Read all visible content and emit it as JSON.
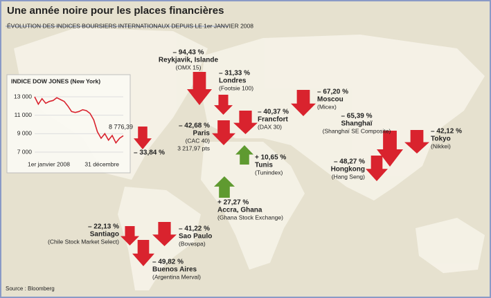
{
  "header": {
    "title": "Une année noire pour les places financières",
    "subtitle": "ÉVOLUTION DES INDICES BOURSIERS INTERNATIONAUX DEPUIS LE 1er JANVIER 2008"
  },
  "source": "Source : Bloomberg",
  "markets": [
    {
      "change": "– 94,43 %",
      "name": "Reykjavik, Islande",
      "index": "(OMX 15)"
    },
    {
      "change": "– 31,33 %",
      "name": "Londres",
      "index": "(Footsie 100)"
    },
    {
      "change": "– 40,37 %",
      "name": "Francfort",
      "index": "(DAX 30)"
    },
    {
      "change": "– 42,68 %",
      "name": "Paris",
      "index": "(CAC 40)",
      "detail": "3 217,97 pts"
    },
    {
      "change": "– 67,20 %",
      "name": "Moscou",
      "index": "(Micex)"
    },
    {
      "change": "– 65,39 %",
      "name": "Shanghaï",
      "index": "(Shanghaï SE Composite)"
    },
    {
      "change": "– 42,12 %",
      "name": "Tokyo",
      "index": "(Nikkei)"
    },
    {
      "change": "– 48,27 %",
      "name": "Hongkong",
      "index": "(Hang Seng)"
    },
    {
      "change": "+ 10,65 %",
      "name": "Tunis",
      "index": "(Tunindex)"
    },
    {
      "change": "+ 27,27 %",
      "name": "Accra, Ghana",
      "index": "(Ghana Stock Exchange)"
    },
    {
      "change": "– 22,13 %",
      "name": "Santiago",
      "index": "(Chile Stock Market Select)"
    },
    {
      "change": "– 41,22 %",
      "name": "Sao Paulo",
      "index": "(Bovespa)"
    },
    {
      "change": "– 49,82 %",
      "name": "Buenos Aires",
      "index": "(Argentina Merval)"
    }
  ],
  "chart_data": {
    "type": "line",
    "title": "INDICE DOW JONES (New York)",
    "categories": [
      "1er janvier 2008",
      null,
      null,
      null,
      null,
      null,
      null,
      null,
      null,
      null,
      null,
      null,
      null,
      null,
      null,
      null,
      null,
      null,
      null,
      null,
      null,
      null,
      null,
      null,
      "31 décembre"
    ],
    "values": [
      13000,
      12200,
      12800,
      12300,
      12500,
      12600,
      12900,
      12700,
      12500,
      12000,
      11400,
      11300,
      11400,
      11600,
      11500,
      11200,
      10500,
      9200,
      8500,
      9000,
      8300,
      8800,
      8000,
      8500,
      8776.39
    ],
    "value_labels": [
      null,
      null,
      null,
      null,
      null,
      null,
      null,
      null,
      null,
      null,
      null,
      null,
      null,
      null,
      null,
      null,
      null,
      null,
      null,
      null,
      null,
      null,
      null,
      null,
      "8 776,39"
    ],
    "change_label": "– 33,84 %",
    "color": "#d9232e",
    "ylim": [
      6700,
      13600
    ],
    "yticks": [
      {
        "value": 7000,
        "label": "7 000"
      },
      {
        "value": 9000,
        "label": "9 000"
      },
      {
        "value": 11000,
        "label": "11 000"
      },
      {
        "value": 13000,
        "label": "13 000"
      }
    ],
    "grid": true
  }
}
